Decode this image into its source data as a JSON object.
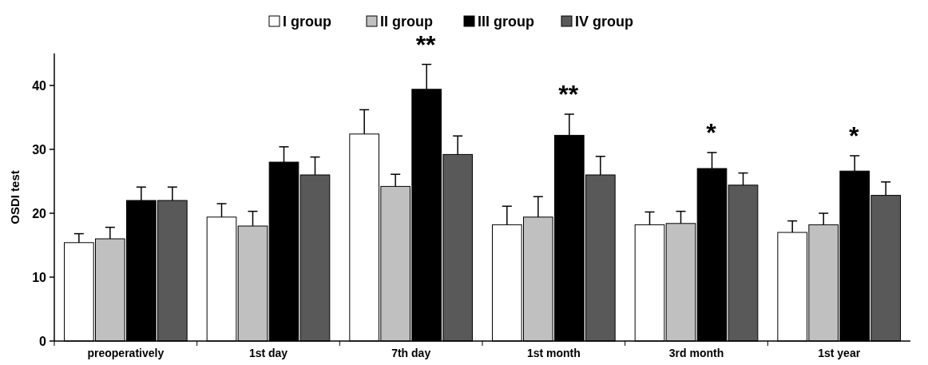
{
  "chart_data": {
    "type": "bar",
    "ylabel": "OSDI test",
    "categories": [
      "preoperatively",
      "1st day",
      "7th day",
      "1st month",
      "3rd month",
      "1st year"
    ],
    "series": [
      {
        "name": "I group",
        "color": "#ffffff",
        "values": [
          15.4,
          19.4,
          32.4,
          18.2,
          18.2,
          17
        ],
        "errors": [
          1.4,
          2.1,
          3.8,
          2.9,
          2,
          1.8
        ]
      },
      {
        "name": "II group",
        "color": "#c0c0c0",
        "values": [
          16,
          18,
          24.2,
          19.4,
          18.4,
          18.2
        ],
        "errors": [
          1.8,
          2.3,
          1.9,
          3.2,
          1.9,
          1.8
        ]
      },
      {
        "name": "III group",
        "color": "#000000",
        "values": [
          22,
          28,
          39.4,
          32.2,
          27,
          26.6
        ],
        "errors": [
          2.1,
          2.4,
          3.9,
          3.3,
          2.5,
          2.4
        ]
      },
      {
        "name": "IV group",
        "color": "#595959",
        "values": [
          22,
          26,
          29.2,
          26,
          24.4,
          22.8
        ],
        "errors": [
          2.1,
          2.8,
          2.9,
          2.9,
          1.9,
          2.1
        ]
      }
    ],
    "ylim": [
      0,
      45
    ],
    "yticks": [
      0,
      10,
      20,
      30,
      40
    ],
    "grid": false,
    "legend": "top",
    "annotations": [
      "**",
      "**",
      "*",
      "*"
    ]
  }
}
